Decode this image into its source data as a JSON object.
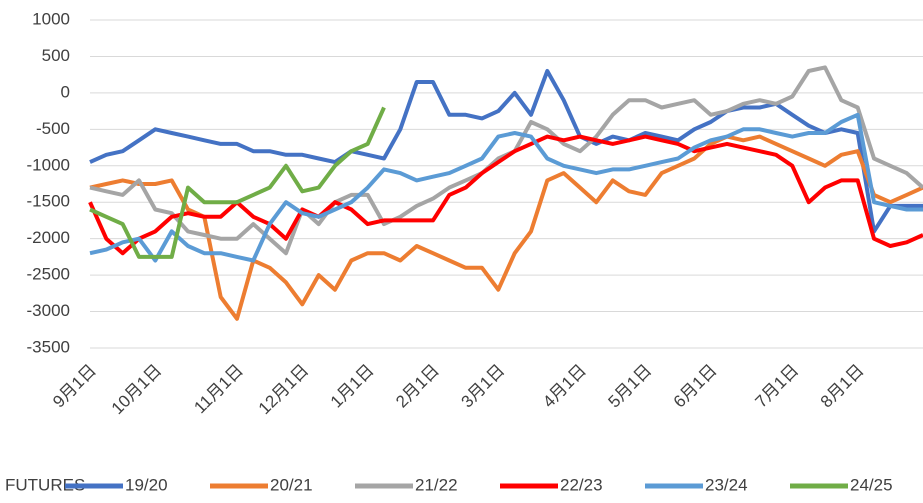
{
  "chart_data": {
    "type": "line",
    "legend_title": "FUTURES",
    "categories": [
      "9月1日",
      null,
      null,
      null,
      "10月1日",
      null,
      null,
      null,
      null,
      "11月1日",
      null,
      null,
      null,
      "12月1日",
      null,
      null,
      null,
      "1月1日",
      null,
      null,
      null,
      "2月1日",
      null,
      null,
      null,
      "3月1日",
      null,
      null,
      null,
      null,
      "4月1日",
      null,
      null,
      null,
      "5月1日",
      null,
      null,
      null,
      "6月1日",
      null,
      null,
      null,
      null,
      "7月1日",
      null,
      null,
      null,
      "8月1日",
      null,
      null,
      null,
      null
    ],
    "ylim": [
      -3500,
      1000
    ],
    "yticks": [
      -3500,
      -3000,
      -2500,
      -2000,
      -1500,
      -1000,
      -500,
      0,
      500,
      1000
    ],
    "grid": true,
    "legend": "bottom",
    "series": [
      {
        "name": "19/20",
        "color": "#4472c4",
        "values": [
          -950,
          -850,
          -800,
          -650,
          -500,
          -550,
          -600,
          -650,
          -700,
          -700,
          -800,
          -800,
          -850,
          -850,
          -900,
          -950,
          -800,
          -850,
          -900,
          -500,
          150,
          150,
          -300,
          -300,
          -350,
          -250,
          0,
          -300,
          300,
          -100,
          -600,
          -700,
          -600,
          -650,
          -550,
          -600,
          -650,
          -500,
          -400,
          -250,
          -200,
          -200,
          -150,
          -300,
          -450,
          -550,
          -500,
          -550,
          -1900,
          -1550,
          -1550,
          -1550
        ]
      },
      {
        "name": "20/21",
        "color": "#ed7d31",
        "values": [
          -1300,
          -1250,
          -1200,
          -1250,
          -1250,
          -1200,
          -1600,
          -1700,
          -2800,
          -3100,
          -2300,
          -2400,
          -2600,
          -2900,
          -2500,
          -2700,
          -2300,
          -2200,
          -2200,
          -2300,
          -2100,
          -2200,
          -2300,
          -2400,
          -2400,
          -2700,
          -2200,
          -1900,
          -1200,
          -1100,
          -1300,
          -1500,
          -1200,
          -1350,
          -1400,
          -1100,
          -1000,
          -900,
          -700,
          -600,
          -650,
          -600,
          -700,
          -800,
          -900,
          -1000,
          -850,
          -800,
          -1400,
          -1500,
          -1400,
          -1300
        ]
      },
      {
        "name": "21/22",
        "color": "#a5a5a5",
        "values": [
          -1300,
          -1350,
          -1400,
          -1200,
          -1600,
          -1650,
          -1900,
          -1950,
          -2000,
          -2000,
          -1800,
          -2000,
          -2200,
          -1600,
          -1800,
          -1500,
          -1400,
          -1400,
          -1800,
          -1700,
          -1550,
          -1450,
          -1300,
          -1200,
          -1100,
          -900,
          -800,
          -400,
          -500,
          -700,
          -800,
          -600,
          -300,
          -100,
          -100,
          -200,
          -150,
          -100,
          -300,
          -250,
          -150,
          -100,
          -150,
          -50,
          300,
          350,
          -100,
          -200,
          -900,
          -1000,
          -1100,
          -1300
        ]
      },
      {
        "name": "22/23",
        "color": "#ff0000",
        "values": [
          -1500,
          -2000,
          -2200,
          -2000,
          -1900,
          -1700,
          -1650,
          -1700,
          -1700,
          -1500,
          -1700,
          -1800,
          -2000,
          -1600,
          -1700,
          -1500,
          -1600,
          -1800,
          -1750,
          -1750,
          -1750,
          -1750,
          -1400,
          -1300,
          -1100,
          -950,
          -800,
          -700,
          -600,
          -650,
          -600,
          -650,
          -700,
          -650,
          -600,
          -650,
          -700,
          -800,
          -750,
          -700,
          -750,
          -800,
          -850,
          -1000,
          -1500,
          -1300,
          -1200,
          -1200,
          -2000,
          -2100,
          -2050,
          -1950
        ]
      },
      {
        "name": "23/24",
        "color": "#5b9bd5",
        "values": [
          -2200,
          -2150,
          -2050,
          -2000,
          -2300,
          -1900,
          -2100,
          -2200,
          -2200,
          -2250,
          -2300,
          -1800,
          -1500,
          -1650,
          -1700,
          -1600,
          -1500,
          -1300,
          -1050,
          -1100,
          -1200,
          -1150,
          -1100,
          -1000,
          -900,
          -600,
          -550,
          -600,
          -900,
          -1000,
          -1050,
          -1100,
          -1050,
          -1050,
          -1000,
          -950,
          -900,
          -750,
          -650,
          -600,
          -500,
          -500,
          -550,
          -600,
          -550,
          -550,
          -400,
          -300,
          -1500,
          -1550,
          -1600,
          -1600
        ]
      },
      {
        "name": "24/25",
        "color": "#70ad47",
        "values": [
          -1600,
          -1700,
          -1800,
          -2250,
          -2250,
          -2250,
          -1300,
          -1500,
          -1500,
          -1500,
          -1400,
          -1300,
          -1000,
          -1350,
          -1300,
          -1000,
          -800,
          -700,
          -200,
          null,
          null,
          null,
          null,
          null,
          null,
          null,
          null,
          null,
          null,
          null,
          null,
          null,
          null,
          null,
          null,
          null,
          null,
          null,
          null,
          null,
          null,
          null,
          null,
          null,
          null,
          null,
          null,
          null,
          null,
          null,
          null,
          null
        ]
      }
    ]
  }
}
